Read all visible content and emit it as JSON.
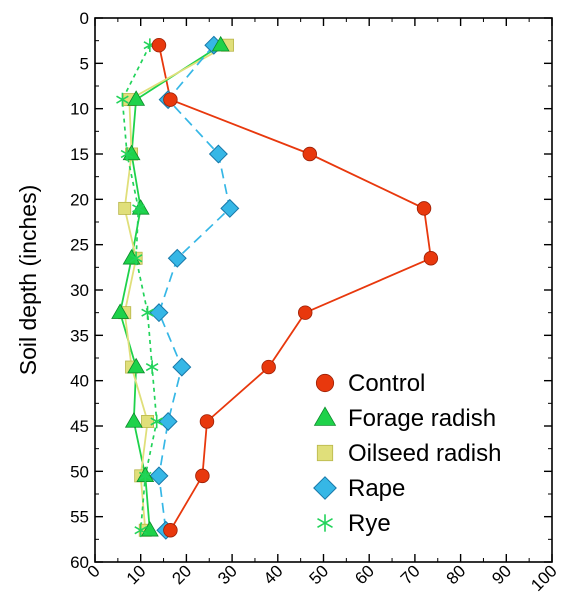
{
  "chart_data": {
    "type": "line",
    "title": "",
    "xlabel": "",
    "ylabel": "Soil depth (inches)",
    "xlim": [
      0,
      100
    ],
    "ylim": [
      0,
      60
    ],
    "y_inverted": true,
    "x_ticks": [
      0,
      10,
      20,
      30,
      40,
      50,
      60,
      70,
      80,
      90,
      100
    ],
    "y_ticks": [
      0,
      5,
      10,
      15,
      20,
      25,
      30,
      35,
      40,
      45,
      50,
      55,
      60
    ],
    "grid": false,
    "legend_position": "bottom-right",
    "series": [
      {
        "name": "Control",
        "marker": "circle",
        "line_style": "solid",
        "color": "#e8380d",
        "points": [
          {
            "x": 14,
            "y": 3
          },
          {
            "x": 16.5,
            "y": 9
          },
          {
            "x": 47,
            "y": 15
          },
          {
            "x": 72,
            "y": 21
          },
          {
            "x": 73.5,
            "y": 26.5
          },
          {
            "x": 46,
            "y": 32.5
          },
          {
            "x": 38,
            "y": 38.5
          },
          {
            "x": 24.5,
            "y": 44.5
          },
          {
            "x": 23.5,
            "y": 50.5
          },
          {
            "x": 16.5,
            "y": 56.5
          }
        ]
      },
      {
        "name": "Forage radish",
        "marker": "triangle",
        "line_style": "solid",
        "color": "#1ed24a",
        "points": [
          {
            "x": 27.5,
            "y": 3
          },
          {
            "x": 9,
            "y": 9
          },
          {
            "x": 8,
            "y": 15
          },
          {
            "x": 10,
            "y": 21
          },
          {
            "x": 8,
            "y": 26.5
          },
          {
            "x": 5.5,
            "y": 32.5
          },
          {
            "x": 9,
            "y": 38.5
          },
          {
            "x": 8.5,
            "y": 44.5
          },
          {
            "x": 11,
            "y": 50.5
          },
          {
            "x": 12,
            "y": 56.5
          }
        ]
      },
      {
        "name": "Oilseed radish",
        "marker": "square",
        "line_style": "solid",
        "color": "#e0df7a",
        "points": [
          {
            "x": 29,
            "y": 3
          },
          {
            "x": 7.5,
            "y": 9
          },
          {
            "x": 8,
            "y": 15
          },
          {
            "x": 6.5,
            "y": 21
          },
          {
            "x": 9,
            "y": 26.5
          },
          {
            "x": 6.5,
            "y": 32.5
          },
          {
            "x": 8,
            "y": 38.5
          },
          {
            "x": 11.5,
            "y": 44.5
          },
          {
            "x": 10,
            "y": 50.5
          },
          {
            "x": 11,
            "y": 56.5
          }
        ]
      },
      {
        "name": "Rape",
        "marker": "diamond",
        "line_style": "dashed",
        "color": "#36b7e6",
        "points": [
          {
            "x": 26,
            "y": 3
          },
          {
            "x": 16,
            "y": 9
          },
          {
            "x": 27,
            "y": 15
          },
          {
            "x": 29.5,
            "y": 21
          },
          {
            "x": 18,
            "y": 26.5
          },
          {
            "x": 14,
            "y": 32.5
          },
          {
            "x": 19,
            "y": 38.5
          },
          {
            "x": 16,
            "y": 44.5
          },
          {
            "x": 14,
            "y": 50.5
          },
          {
            "x": 15.5,
            "y": 56.5
          }
        ]
      },
      {
        "name": "Rye",
        "marker": "asterisk",
        "line_style": "dotted",
        "color": "#22d35a",
        "points": [
          {
            "x": 12,
            "y": 3
          },
          {
            "x": 6,
            "y": 9
          },
          {
            "x": 7,
            "y": 15
          },
          {
            "x": 9.5,
            "y": 21
          },
          {
            "x": 9,
            "y": 26.5
          },
          {
            "x": 11.5,
            "y": 32.5
          },
          {
            "x": 12.5,
            "y": 38.5
          },
          {
            "x": 13.5,
            "y": 44.5
          },
          {
            "x": 11,
            "y": 50.5
          },
          {
            "x": 10,
            "y": 56.5
          }
        ]
      }
    ]
  }
}
